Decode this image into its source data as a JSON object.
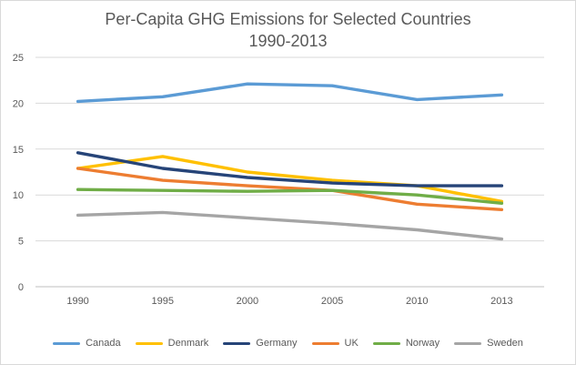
{
  "chart_data": {
    "type": "line",
    "title": "Per-Capita GHG Emissions for Selected Countries",
    "subtitle": "1990-2013",
    "xlabel": "",
    "ylabel": "",
    "categories": [
      "1990",
      "1995",
      "2000",
      "2005",
      "2010",
      "2013"
    ],
    "ylim": [
      0,
      25
    ],
    "yticks": [
      "0",
      "5",
      "10",
      "15",
      "20",
      "25"
    ],
    "grid": true,
    "legend_position": "bottom",
    "series": [
      {
        "name": "Canada",
        "color": "#5b9bd5",
        "values": [
          20.2,
          20.7,
          22.1,
          21.9,
          20.4,
          20.9
        ]
      },
      {
        "name": "Denmark",
        "color": "#ffc000",
        "values": [
          12.9,
          14.2,
          12.5,
          11.6,
          11.0,
          9.3
        ]
      },
      {
        "name": "Germany",
        "color": "#264478",
        "values": [
          14.6,
          12.9,
          11.9,
          11.3,
          11.0,
          11.0
        ]
      },
      {
        "name": "UK",
        "color": "#ed7d31",
        "values": [
          12.9,
          11.6,
          11.0,
          10.5,
          9.0,
          8.4
        ]
      },
      {
        "name": "Norway",
        "color": "#70ad47",
        "values": [
          10.6,
          10.5,
          10.4,
          10.5,
          10.0,
          9.1
        ]
      },
      {
        "name": "Sweden",
        "color": "#a5a5a5",
        "values": [
          7.8,
          8.1,
          7.5,
          6.9,
          6.2,
          5.2
        ]
      }
    ]
  }
}
